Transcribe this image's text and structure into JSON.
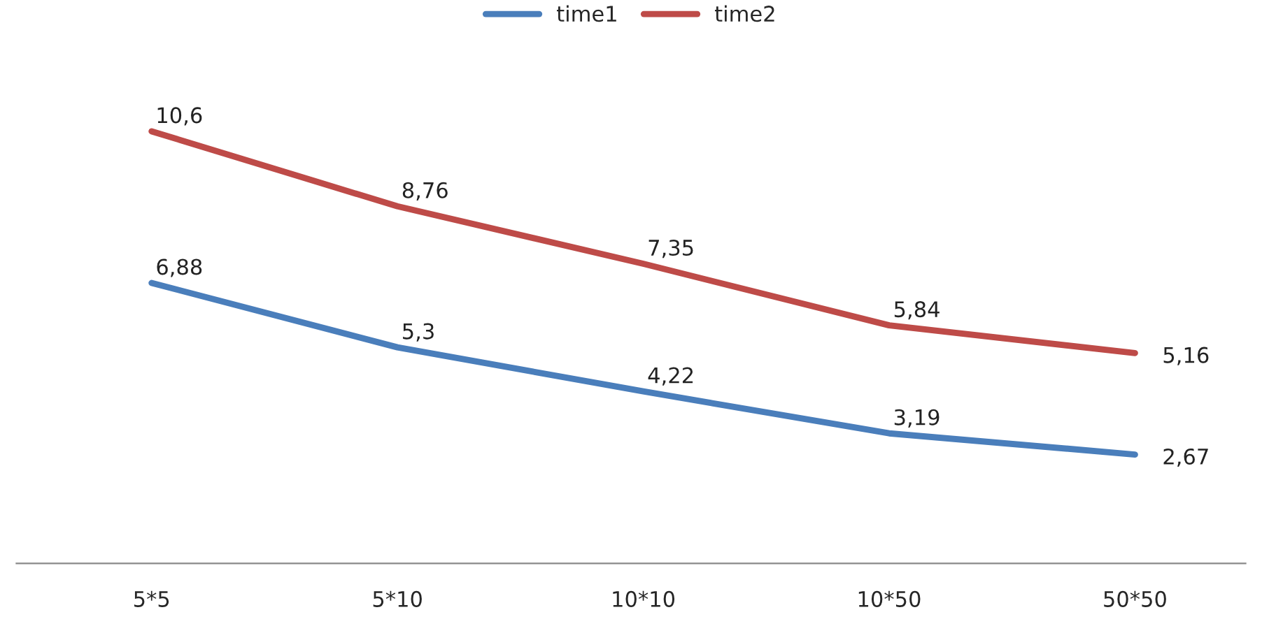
{
  "chart_data": {
    "type": "line",
    "categories": [
      "5*5",
      "5*10",
      "10*10",
      "10*50",
      "50*50"
    ],
    "series": [
      {
        "name": "time1",
        "color": "#4a7ebb",
        "values": [
          6.88,
          5.3,
          4.22,
          3.19,
          2.67
        ],
        "value_labels": [
          "6,88",
          "5,3",
          "4,22",
          "3,19",
          "2,67"
        ]
      },
      {
        "name": "time2",
        "color": "#be4b48",
        "values": [
          10.6,
          8.76,
          7.35,
          5.84,
          5.16
        ],
        "value_labels": [
          "10,6",
          "8,76",
          "7,35",
          "5,84",
          "5,16"
        ]
      }
    ],
    "tick_labels": "x",
    "grid": false,
    "legend": "top",
    "marker": "none",
    "line_style": "solid"
  }
}
